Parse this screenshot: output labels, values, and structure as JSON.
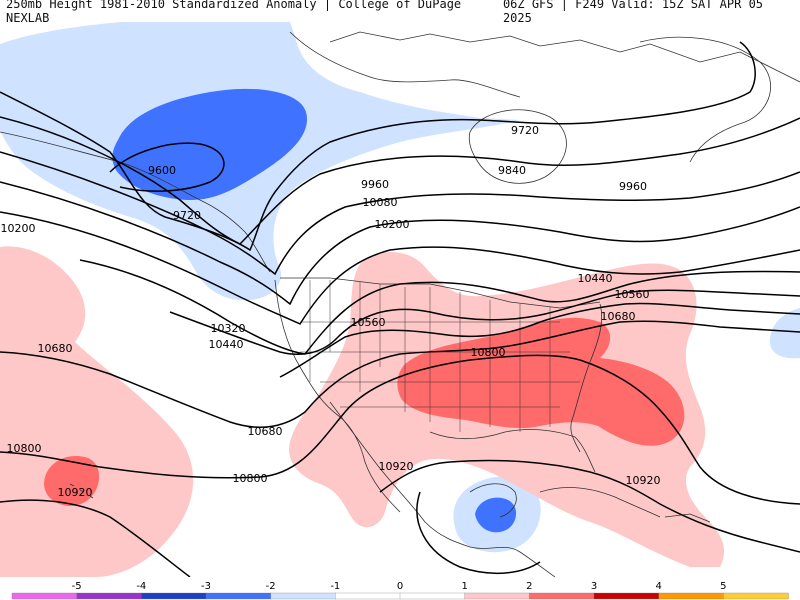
{
  "header": {
    "left_title": "250mb Height 1981-2010 Standardized Anomaly | College of DuPage NEXLAB",
    "right_title": "06Z GFS | F249 Valid: 15Z SAT APR 05 2025"
  },
  "colors": {
    "neg_strong": "#3f73ff",
    "neg_weak": "#cfe2ff",
    "pos_weak": "#ffc8c8",
    "pos_strong": "#ff6a6a",
    "land_outline": "#333333",
    "contour": "#000000"
  },
  "contour_labels": [
    {
      "id": "c9600",
      "text": "9600"
    },
    {
      "id": "c9720a",
      "text": "9720"
    },
    {
      "id": "c9720b",
      "text": "9720"
    },
    {
      "id": "c9840",
      "text": "9840"
    },
    {
      "id": "c9960a",
      "text": "9960"
    },
    {
      "id": "c9960b",
      "text": "9960"
    },
    {
      "id": "c10080",
      "text": "10080"
    },
    {
      "id": "c10200a",
      "text": "10200"
    },
    {
      "id": "c10200b",
      "text": "10200"
    },
    {
      "id": "c10320",
      "text": "10320"
    },
    {
      "id": "c10440a",
      "text": "10440"
    },
    {
      "id": "c10440b",
      "text": "10440"
    },
    {
      "id": "c10560a",
      "text": "10560"
    },
    {
      "id": "c10560b",
      "text": "10560"
    },
    {
      "id": "c10680a",
      "text": "10680"
    },
    {
      "id": "c10680b",
      "text": "10680"
    },
    {
      "id": "c10680c",
      "text": "10680"
    },
    {
      "id": "c10800a",
      "text": "10800"
    },
    {
      "id": "c10800b",
      "text": "10800"
    },
    {
      "id": "c10800c",
      "text": "10800"
    },
    {
      "id": "c10920a",
      "text": "10920"
    },
    {
      "id": "c10920b",
      "text": "10920"
    },
    {
      "id": "c10920c",
      "text": "10920"
    }
  ],
  "colorbar": {
    "ticks": [
      "-5",
      "-4",
      "-3",
      "-2",
      "-1",
      "0",
      "1",
      "2",
      "3",
      "4",
      "5"
    ],
    "colors": [
      "#ee66ee",
      "#9933cc",
      "#1f3fc8",
      "#3f73ff",
      "#cfe2ff",
      "#ffffff",
      "#ffffff",
      "#ffc8c8",
      "#ff6a6a",
      "#cc0000",
      "#ff9900",
      "#ffcc33"
    ]
  }
}
